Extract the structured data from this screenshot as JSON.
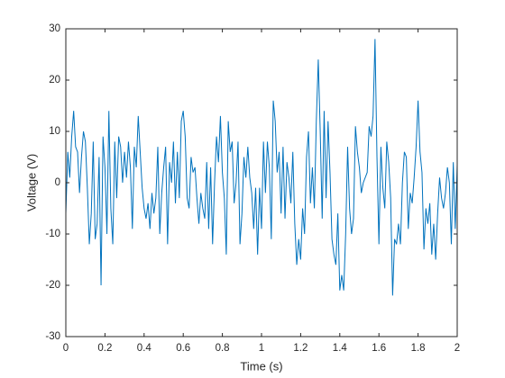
{
  "chart_data": {
    "type": "line",
    "xlabel": "Time (s)",
    "ylabel": "Voltage (V)",
    "x": [
      0,
      0.01,
      0.02,
      0.03,
      0.04,
      0.05,
      0.06,
      0.07,
      0.08,
      0.09,
      0.1,
      0.11,
      0.12,
      0.13,
      0.14,
      0.15,
      0.16,
      0.17,
      0.18,
      0.19,
      0.2,
      0.21,
      0.22,
      0.23,
      0.24,
      0.25,
      0.26,
      0.27,
      0.28,
      0.29,
      0.3,
      0.31,
      0.32,
      0.33,
      0.34,
      0.35,
      0.36,
      0.37,
      0.38,
      0.39,
      0.4,
      0.41,
      0.42,
      0.43,
      0.44,
      0.45,
      0.46,
      0.47,
      0.48,
      0.49,
      0.5,
      0.51,
      0.52,
      0.53,
      0.54,
      0.55,
      0.56,
      0.57,
      0.58,
      0.59,
      0.6,
      0.61,
      0.62,
      0.63,
      0.64,
      0.65,
      0.66,
      0.67,
      0.68,
      0.69,
      0.7,
      0.71,
      0.72,
      0.73,
      0.74,
      0.75,
      0.76,
      0.77,
      0.78,
      0.79,
      0.8,
      0.81,
      0.82,
      0.83,
      0.84,
      0.85,
      0.86,
      0.87,
      0.88,
      0.89,
      0.9,
      0.91,
      0.92,
      0.93,
      0.94,
      0.95,
      0.96,
      0.97,
      0.98,
      0.99,
      1,
      1.01,
      1.02,
      1.03,
      1.04,
      1.05,
      1.06,
      1.07,
      1.08,
      1.09,
      1.1,
      1.11,
      1.12,
      1.13,
      1.14,
      1.15,
      1.16,
      1.17,
      1.18,
      1.19,
      1.2,
      1.21,
      1.22,
      1.23,
      1.24,
      1.25,
      1.26,
      1.27,
      1.28,
      1.29,
      1.3,
      1.31,
      1.32,
      1.33,
      1.34,
      1.35,
      1.36,
      1.37,
      1.38,
      1.39,
      1.4,
      1.41,
      1.42,
      1.43,
      1.44,
      1.45,
      1.46,
      1.47,
      1.48,
      1.49,
      1.5,
      1.51,
      1.52,
      1.53,
      1.54,
      1.55,
      1.56,
      1.57,
      1.58,
      1.59,
      1.6,
      1.61,
      1.62,
      1.63,
      1.64,
      1.65,
      1.66,
      1.67,
      1.68,
      1.69,
      1.7,
      1.71,
      1.72,
      1.73,
      1.74,
      1.75,
      1.76,
      1.77,
      1.78,
      1.79,
      1.8,
      1.81,
      1.82,
      1.83,
      1.84,
      1.85,
      1.86,
      1.87,
      1.88,
      1.89,
      1.9,
      1.91,
      1.92,
      1.93,
      1.94,
      1.95,
      1.96,
      1.97,
      1.98,
      1.99,
      2
    ],
    "values": [
      -6,
      6,
      1,
      9,
      14,
      7,
      6,
      -2,
      5,
      10,
      8,
      -1,
      -12,
      -6,
      8,
      -11,
      -8,
      5,
      -20,
      9,
      3,
      -10,
      14,
      -5,
      -12,
      8,
      -3,
      9,
      7,
      0,
      6,
      1,
      8,
      3,
      -9,
      7,
      3,
      13,
      6,
      -1,
      -5,
      -7,
      -4,
      -9,
      -2,
      -6,
      -3,
      7,
      -10,
      -2,
      3,
      7,
      -12,
      4,
      0,
      8,
      -4,
      6,
      -3,
      12,
      14,
      9,
      -3,
      -5,
      5,
      2,
      3,
      -3,
      -8,
      -2,
      -5,
      -7,
      4,
      -9,
      3,
      -12,
      0,
      9,
      4,
      13,
      2,
      -3,
      -14,
      12,
      6,
      8,
      -4,
      0,
      8,
      -12,
      -6,
      5,
      1,
      7,
      1,
      -2,
      -9,
      -1,
      -14,
      -1,
      -9,
      8,
      -2,
      8,
      3,
      -11,
      16,
      12,
      2,
      6,
      -6,
      7,
      -7,
      4,
      1,
      -4,
      6,
      -8,
      -16,
      -11,
      -15,
      -5,
      -10,
      5,
      10,
      -4,
      3,
      -5,
      12,
      24,
      10,
      -7,
      14,
      -3,
      12,
      2,
      -11,
      -14,
      -16,
      -6,
      -21,
      -18,
      -21,
      -10,
      7,
      -5,
      -10,
      -7,
      11,
      6,
      3,
      -2,
      0,
      1,
      2,
      11,
      9,
      13,
      28,
      5,
      -12,
      7,
      -1,
      -5,
      8,
      4,
      -3,
      -22,
      -11,
      -12,
      -8,
      -12,
      0,
      6,
      5,
      -9,
      -2,
      -4,
      1,
      7,
      16,
      6,
      2,
      -13,
      -5,
      -8,
      -4,
      -14,
      -8,
      -15,
      -6,
      1,
      -3,
      -5,
      -2,
      3,
      0,
      -12,
      4,
      -9,
      3.5
    ],
    "color": "#0072bd",
    "xlim": [
      0,
      2
    ],
    "xticks": [
      0,
      0.2,
      0.4,
      0.6,
      0.8,
      1,
      1.2,
      1.4,
      1.6,
      1.8,
      2
    ],
    "ylim": [
      -30,
      30
    ],
    "yticks": [
      -30,
      -20,
      -10,
      0,
      10,
      20,
      30
    ]
  }
}
